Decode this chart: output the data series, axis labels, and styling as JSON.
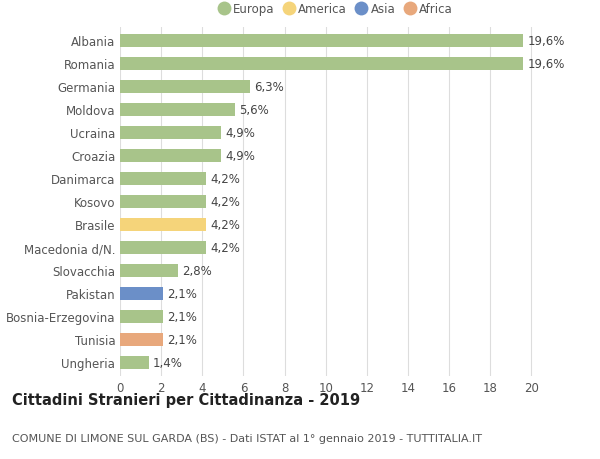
{
  "categories": [
    "Albania",
    "Romania",
    "Germania",
    "Moldova",
    "Ucraina",
    "Croazia",
    "Danimarca",
    "Kosovo",
    "Brasile",
    "Macedonia d/N.",
    "Slovacchia",
    "Pakistan",
    "Bosnia-Erzegovina",
    "Tunisia",
    "Ungheria"
  ],
  "values": [
    19.6,
    19.6,
    6.3,
    5.6,
    4.9,
    4.9,
    4.2,
    4.2,
    4.2,
    4.2,
    2.8,
    2.1,
    2.1,
    2.1,
    1.4
  ],
  "labels": [
    "19,6%",
    "19,6%",
    "6,3%",
    "5,6%",
    "4,9%",
    "4,9%",
    "4,2%",
    "4,2%",
    "4,2%",
    "4,2%",
    "2,8%",
    "2,1%",
    "2,1%",
    "2,1%",
    "1,4%"
  ],
  "continents": [
    "Europa",
    "Europa",
    "Europa",
    "Europa",
    "Europa",
    "Europa",
    "Europa",
    "Europa",
    "America",
    "Europa",
    "Europa",
    "Asia",
    "Europa",
    "Africa",
    "Europa"
  ],
  "colors": {
    "Europa": "#a8c48a",
    "America": "#f5d47a",
    "Asia": "#6b8fc8",
    "Africa": "#e8a87c"
  },
  "legend_labels": [
    "Europa",
    "America",
    "Asia",
    "Africa"
  ],
  "legend_colors": [
    "#a8c48a",
    "#f5d47a",
    "#6b8fc8",
    "#e8a87c"
  ],
  "xlim": [
    0,
    21
  ],
  "xticks": [
    0,
    2,
    4,
    6,
    8,
    10,
    12,
    14,
    16,
    18,
    20
  ],
  "title": "Cittadini Stranieri per Cittadinanza - 2019",
  "subtitle": "COMUNE DI LIMONE SUL GARDA (BS) - Dati ISTAT al 1° gennaio 2019 - TUTTITALIA.IT",
  "background_color": "#ffffff",
  "bar_height": 0.6,
  "grid_color": "#dddddd",
  "label_fontsize": 8.5,
  "tick_fontsize": 8.5,
  "title_fontsize": 10.5,
  "subtitle_fontsize": 8
}
